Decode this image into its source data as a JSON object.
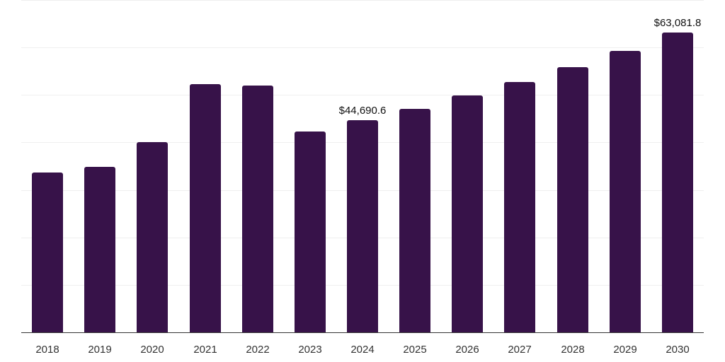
{
  "chart_data": {
    "type": "bar",
    "title": "",
    "xlabel": "",
    "ylabel": "",
    "categories": [
      "2018",
      "2019",
      "2020",
      "2021",
      "2022",
      "2023",
      "2024",
      "2025",
      "2026",
      "2027",
      "2028",
      "2029",
      "2030"
    ],
    "values": [
      33670,
      34860,
      40070,
      52290,
      51990,
      42310,
      44690.6,
      47070,
      49900,
      52730,
      55860,
      59290,
      63081.8
    ],
    "annotations": [
      {
        "category": "2024",
        "label": "$44,690.6"
      },
      {
        "category": "2030",
        "label": "$63,081.8"
      }
    ],
    "ylim": [
      0,
      70000
    ],
    "y_gridlines": [
      10000,
      20000,
      30000,
      40000,
      50000,
      60000,
      70000
    ],
    "grid": true,
    "y_tick_labels_visible": false,
    "legend": null,
    "bar_color": "#371249",
    "axis_color": "#333333",
    "grid_color": "#efefef"
  }
}
